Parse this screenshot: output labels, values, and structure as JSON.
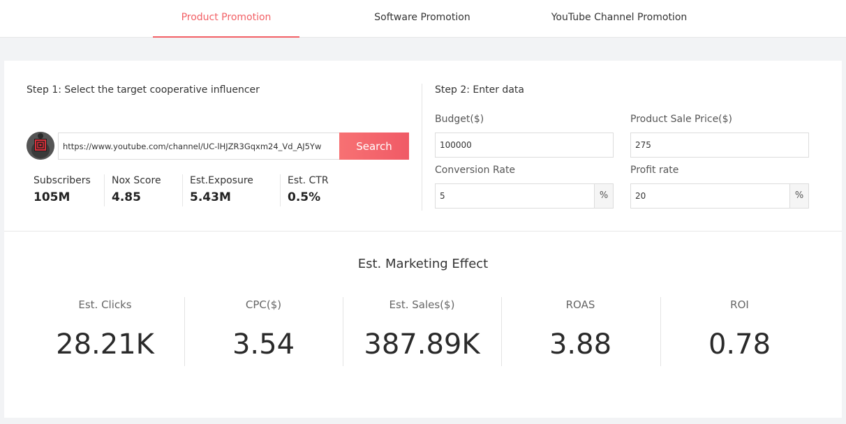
{
  "tabs": [
    {
      "label": "Product Promotion",
      "active": true
    },
    {
      "label": "Software Promotion",
      "active": false
    },
    {
      "label": "YouTube Channel Promotion",
      "active": false
    }
  ],
  "accent_color": "#f26065",
  "step1": {
    "title": "Step 1: Select the target cooperative influencer",
    "url_value": "https://www.youtube.com/channel/UC-lHJZR3Gqxm24_Vd_AJ5Yw",
    "search_label": "Search",
    "avatar_icon": "channel-avatar",
    "stats": [
      {
        "label": "Subscribers",
        "value": "105M"
      },
      {
        "label": "Nox Score",
        "value": "4.85"
      },
      {
        "label": "Est.Exposure",
        "value": "5.43M"
      },
      {
        "label": "Est. CTR",
        "value": "0.5%"
      }
    ]
  },
  "step2": {
    "title": "Step 2: Enter data",
    "budget": {
      "label": "Budget($)",
      "value": "100000"
    },
    "sale_price": {
      "label": "Product Sale Price($)",
      "value": "275"
    },
    "conversion": {
      "label": "Conversion Rate",
      "value": "5",
      "unit": "%"
    },
    "profit": {
      "label": "Profit rate",
      "value": "20",
      "unit": "%"
    }
  },
  "effect": {
    "title": "Est. Marketing Effect",
    "metrics": [
      {
        "label": "Est. Clicks",
        "value": "28.21K"
      },
      {
        "label": "CPC($)",
        "value": "3.54"
      },
      {
        "label": "Est. Sales($)",
        "value": "387.89K"
      },
      {
        "label": "ROAS",
        "value": "3.88"
      },
      {
        "label": "ROI",
        "value": "0.78"
      }
    ]
  }
}
